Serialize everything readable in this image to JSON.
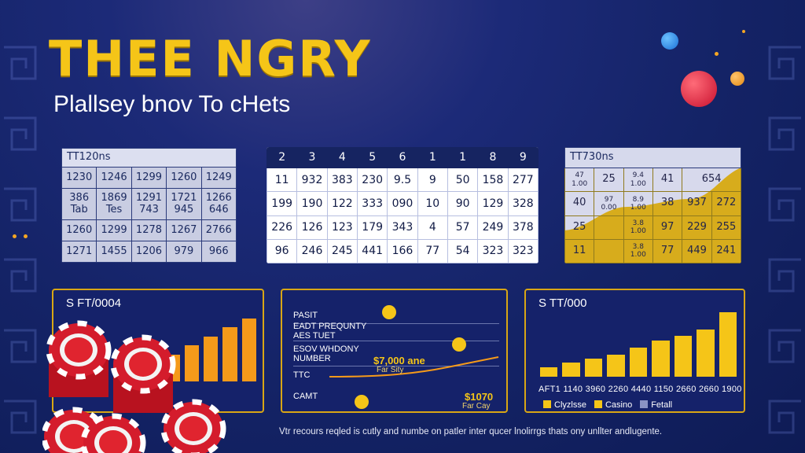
{
  "header": {
    "title": "THEE NGRY",
    "subtitle": "Plallsey bnov To cHets"
  },
  "table_left": {
    "title": "TT120ns",
    "rows": [
      [
        "1230",
        "1246",
        "1299",
        "1260",
        "1249"
      ],
      [
        "386\nTab",
        "1869\nTes",
        "1291\n743",
        "1721\n945",
        "1266\n646"
      ],
      [
        "1260",
        "1299",
        "1278",
        "1267",
        "2766"
      ],
      [
        "1271",
        "1455",
        "1206",
        "979",
        "966"
      ]
    ]
  },
  "table_center": {
    "headers": [
      "2",
      "3",
      "4",
      "5",
      "6",
      "1",
      "1",
      "8",
      "9"
    ],
    "rows": [
      [
        "11",
        "932",
        "383",
        "230",
        "9.5",
        "9",
        "50",
        "158",
        "277"
      ],
      [
        "199",
        "190",
        "122",
        "333",
        "090",
        "10",
        "90",
        "129",
        "328"
      ],
      [
        "226",
        "126",
        "123",
        "179",
        "343",
        "4",
        "57",
        "249",
        "378"
      ],
      [
        "96",
        "246",
        "245",
        "441",
        "166",
        "77",
        "54",
        "323",
        "323"
      ]
    ]
  },
  "table_right": {
    "title": "TT730ns",
    "rows": [
      [
        "47\n1.00",
        "25",
        "9.4\n1.00",
        "41",
        "654"
      ],
      [
        "40",
        "97\n0.00",
        "8.9\n1.00",
        "38",
        "937",
        "272"
      ],
      [
        "25",
        "",
        "3.8\n1.00",
        "97",
        "229",
        "255"
      ],
      [
        "11",
        "",
        "3.8\n1.00",
        "77",
        "449",
        "241"
      ]
    ]
  },
  "panel_left": {
    "title": "S FT/0004",
    "chart_data": {
      "type": "bar",
      "values": [
        2,
        3,
        4,
        5,
        6,
        7
      ],
      "colors": [
        "#f59a1a"
      ]
    }
  },
  "panel_middle": {
    "labels": [
      "PASIT",
      "EADT PREQUNTY\nAES TUET",
      "ESOV WHDONY\nNUMBER",
      "TTC",
      "CAMT"
    ],
    "value_top": "$7,000 ane",
    "value_top_sub": "Far Sity",
    "value_bottom": "$1070",
    "value_bottom_sub": "Far Cay"
  },
  "panel_right": {
    "title": "S TT/000",
    "x_labels": "AFT1 1140 3960 2260 4440 1150 2660 2660 1900",
    "chart_data": {
      "type": "bar",
      "values": [
        1.2,
        1.8,
        2.3,
        2.8,
        3.7,
        4.6,
        5.2,
        6.0,
        8.2
      ],
      "colors": [
        "#f5c518"
      ]
    },
    "legend": [
      {
        "label": "Clyzlsse",
        "color": "#f5c518"
      },
      {
        "label": "Casino",
        "color": "#f5c518"
      },
      {
        "label": "Fetall",
        "color": "#8a93c4"
      }
    ]
  },
  "footer": {
    "text": "Vtr recours reqled is cutly and numbe on patler inter qucer lnolirrgs thats ony unllter andlugente."
  }
}
